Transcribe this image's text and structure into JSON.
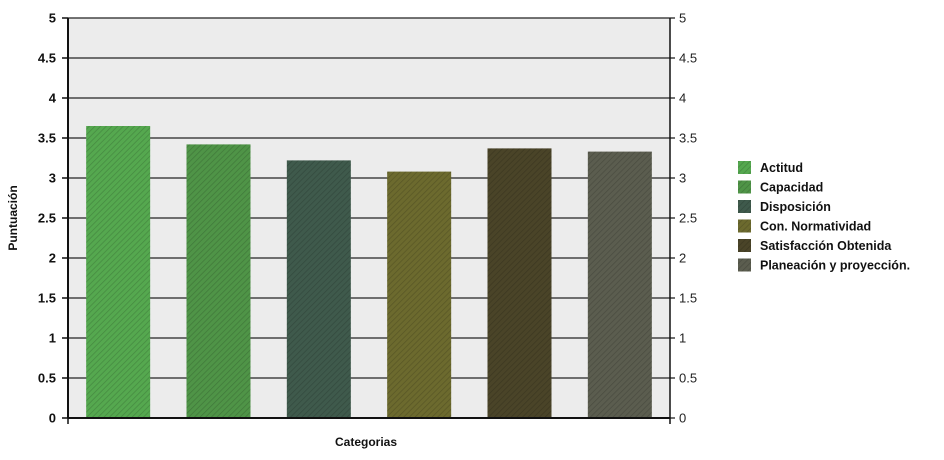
{
  "chart_data": {
    "type": "bar",
    "xlabel": "Categorias",
    "ylabel": "Puntuación",
    "ylim": [
      0,
      5
    ],
    "yticks_left": [
      "0",
      "0.5",
      "1",
      "1.5",
      "2",
      "2.5",
      "3",
      "3.5",
      "4",
      "4.5",
      "5"
    ],
    "yticks_right": [
      "0",
      "0.5",
      "1",
      "1.5",
      "2",
      "2.5",
      "3",
      "3.5",
      "4",
      "4.5",
      "5"
    ],
    "grid": true,
    "legend_position": "right",
    "series": [
      {
        "name": "Actitud",
        "value": 3.65,
        "color": "#55a84f"
      },
      {
        "name": "Capacidad",
        "value": 3.42,
        "color": "#4f9447"
      },
      {
        "name": "Disposición",
        "value": 3.22,
        "color": "#3f5a4c"
      },
      {
        "name": "Con. Normatividad",
        "value": 3.08,
        "color": "#6c6a2e"
      },
      {
        "name": "Satisfacción Obtenida",
        "value": 3.37,
        "color": "#4a4428"
      },
      {
        "name": "Planeación y proyección.",
        "value": 3.33,
        "color": "#5b5d4f"
      }
    ]
  }
}
